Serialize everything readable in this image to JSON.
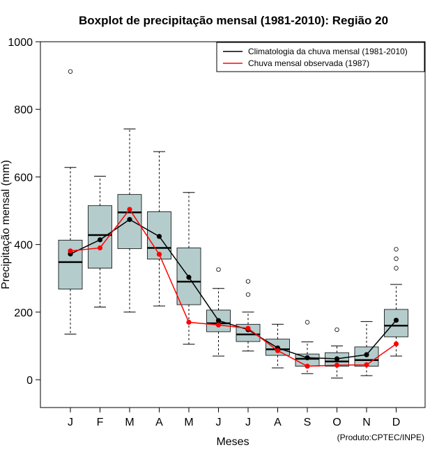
{
  "chart_data": {
    "type": "boxplot",
    "title": "Boxplot de precipitação mensal (1981-2010): Região 20",
    "xlabel": "Meses",
    "ylabel": "Precipitação mensal (mm)",
    "ylim": [
      -80,
      1000
    ],
    "yticks": [
      0,
      200,
      400,
      600,
      800,
      1000
    ],
    "categories": [
      "J",
      "F",
      "M",
      "A",
      "M",
      "J",
      "J",
      "A",
      "S",
      "O",
      "N",
      "D"
    ],
    "boxes": [
      {
        "whisker_low": 135,
        "q1": 268,
        "median": 348,
        "q3": 413,
        "whisker_high": 628,
        "outliers": [
          912
        ]
      },
      {
        "whisker_low": 215,
        "q1": 330,
        "median": 428,
        "q3": 515,
        "whisker_high": 602,
        "outliers": []
      },
      {
        "whisker_low": 200,
        "q1": 388,
        "median": 495,
        "q3": 548,
        "whisker_high": 742,
        "outliers": []
      },
      {
        "whisker_low": 218,
        "q1": 357,
        "median": 390,
        "q3": 497,
        "whisker_high": 675,
        "outliers": []
      },
      {
        "whisker_low": 105,
        "q1": 222,
        "median": 290,
        "q3": 390,
        "whisker_high": 554,
        "outliers": []
      },
      {
        "whisker_low": 70,
        "q1": 142,
        "median": 167,
        "q3": 206,
        "whisker_high": 270,
        "outliers": [
          326
        ]
      },
      {
        "whisker_low": 85,
        "q1": 113,
        "median": 134,
        "q3": 164,
        "whisker_high": 200,
        "outliers": [
          252,
          291
        ]
      },
      {
        "whisker_low": 35,
        "q1": 72,
        "median": 90,
        "q3": 120,
        "whisker_high": 164,
        "outliers": []
      },
      {
        "whisker_low": 18,
        "q1": 40,
        "median": 62,
        "q3": 76,
        "whisker_high": 112,
        "outliers": [
          170
        ]
      },
      {
        "whisker_low": 5,
        "q1": 40,
        "median": 54,
        "q3": 80,
        "whisker_high": 100,
        "outliers": [
          148
        ]
      },
      {
        "whisker_low": 12,
        "q1": 40,
        "median": 58,
        "q3": 97,
        "whisker_high": 172,
        "outliers": []
      },
      {
        "whisker_low": 70,
        "q1": 127,
        "median": 160,
        "q3": 208,
        "whisker_high": 282,
        "outliers": [
          330,
          358,
          386
        ]
      }
    ],
    "series": [
      {
        "name": "Climatologia da chuva mensal (1981-2010)",
        "color": "#000000",
        "values": [
          372,
          414,
          474,
          424,
          303,
          175,
          148,
          94,
          65,
          62,
          74,
          176
        ]
      },
      {
        "name": "Chuva mensal observada (1987)",
        "color": "#ff0000",
        "values": [
          381,
          390,
          504,
          371,
          170,
          162,
          152,
          86,
          40,
          43,
          44,
          106
        ]
      }
    ],
    "legend_position": "top-right",
    "box_color": "#b5cccc",
    "footer": "(Produto:CPTEC/INPE)"
  }
}
